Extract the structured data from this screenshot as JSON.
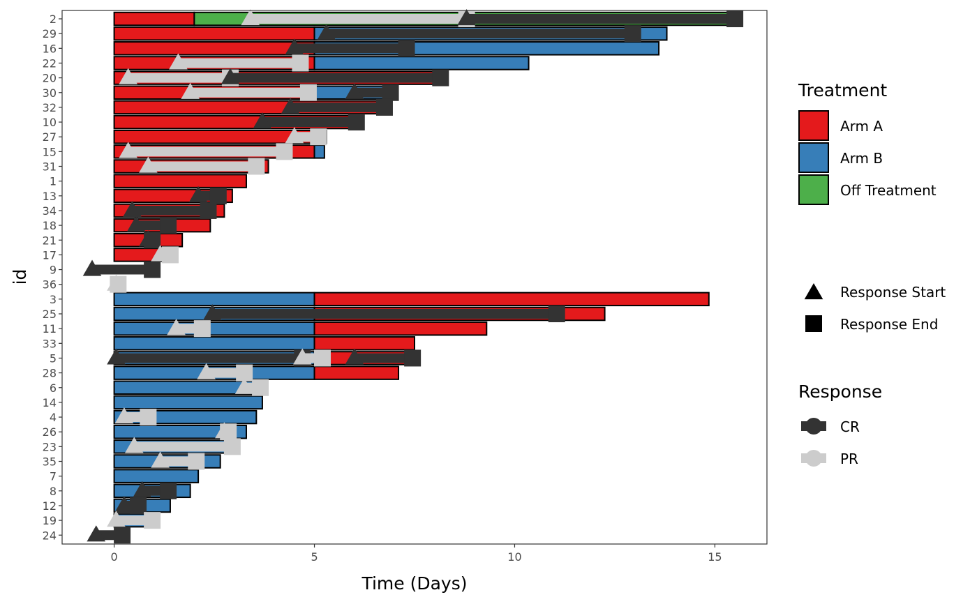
{
  "chart_data": {
    "type": "swimmer",
    "title": "",
    "xlabel": "Time (Days)",
    "ylabel": "id",
    "xlim": [
      -1.3,
      16.3
    ],
    "x_ticks": [
      0,
      5,
      10,
      15
    ],
    "grid": false,
    "ids": [
      "2",
      "29",
      "16",
      "22",
      "20",
      "30",
      "32",
      "10",
      "27",
      "15",
      "31",
      "1",
      "13",
      "34",
      "18",
      "21",
      "17",
      "9",
      "36",
      "3",
      "25",
      "11",
      "33",
      "5",
      "28",
      "6",
      "14",
      "4",
      "26",
      "23",
      "35",
      "7",
      "8",
      "12",
      "19",
      "24"
    ],
    "treatment_legend": {
      "title": "Treatment",
      "entries": [
        {
          "key": "A",
          "label": "Arm A",
          "color": "#E41A1C"
        },
        {
          "key": "B",
          "label": "Arm B",
          "color": "#377EB8"
        },
        {
          "key": "O",
          "label": "Off Treatment",
          "color": "#4DAF4A"
        }
      ]
    },
    "shape_legend": {
      "entries": [
        {
          "key": "start",
          "label": "Response Start",
          "shape": "triangle"
        },
        {
          "key": "end",
          "label": "Response End",
          "shape": "square"
        }
      ]
    },
    "response_legend": {
      "title": "Response",
      "entries": [
        {
          "key": "CR",
          "label": "CR",
          "color": "#333333"
        },
        {
          "key": "PR",
          "label": "PR",
          "color": "#CCCCCC"
        }
      ]
    },
    "bars": [
      {
        "id": "2",
        "segments": [
          {
            "t": "A",
            "from": 0,
            "to": 2
          },
          {
            "t": "O",
            "from": 2,
            "to": 15.5
          }
        ]
      },
      {
        "id": "29",
        "segments": [
          {
            "t": "A",
            "from": 0,
            "to": 5
          },
          {
            "t": "B",
            "from": 5,
            "to": 13.8
          }
        ]
      },
      {
        "id": "16",
        "segments": [
          {
            "t": "A",
            "from": 0,
            "to": 5
          },
          {
            "t": "B",
            "from": 5,
            "to": 13.6
          }
        ]
      },
      {
        "id": "22",
        "segments": [
          {
            "t": "A",
            "from": 0,
            "to": 5
          },
          {
            "t": "B",
            "from": 5,
            "to": 10.35
          }
        ]
      },
      {
        "id": "20",
        "segments": [
          {
            "t": "A",
            "from": 0,
            "to": 8.15
          }
        ]
      },
      {
        "id": "30",
        "segments": [
          {
            "t": "A",
            "from": 0,
            "to": 5
          },
          {
            "t": "B",
            "from": 5,
            "to": 6.9
          }
        ]
      },
      {
        "id": "32",
        "segments": [
          {
            "t": "A",
            "from": 0,
            "to": 6.85
          }
        ]
      },
      {
        "id": "10",
        "segments": [
          {
            "t": "A",
            "from": 0,
            "to": 6.05
          }
        ]
      },
      {
        "id": "27",
        "segments": [
          {
            "t": "A",
            "from": 0,
            "to": 5.3
          }
        ]
      },
      {
        "id": "15",
        "segments": [
          {
            "t": "A",
            "from": 0,
            "to": 5
          },
          {
            "t": "B",
            "from": 5,
            "to": 5.25
          }
        ]
      },
      {
        "id": "31",
        "segments": [
          {
            "t": "A",
            "from": 0,
            "to": 3.85
          }
        ]
      },
      {
        "id": "1",
        "segments": [
          {
            "t": "A",
            "from": 0,
            "to": 3.3
          }
        ]
      },
      {
        "id": "13",
        "segments": [
          {
            "t": "A",
            "from": 0,
            "to": 2.95
          }
        ]
      },
      {
        "id": "34",
        "segments": [
          {
            "t": "A",
            "from": 0,
            "to": 2.75
          }
        ]
      },
      {
        "id": "18",
        "segments": [
          {
            "t": "A",
            "from": 0,
            "to": 2.4
          }
        ]
      },
      {
        "id": "21",
        "segments": [
          {
            "t": "A",
            "from": 0,
            "to": 1.7
          }
        ]
      },
      {
        "id": "17",
        "segments": [
          {
            "t": "A",
            "from": 0,
            "to": 1.2
          }
        ]
      },
      {
        "id": "9",
        "segments": []
      },
      {
        "id": "36",
        "segments": []
      },
      {
        "id": "3",
        "segments": [
          {
            "t": "B",
            "from": 0,
            "to": 5
          },
          {
            "t": "A",
            "from": 5,
            "to": 14.85
          }
        ]
      },
      {
        "id": "25",
        "segments": [
          {
            "t": "B",
            "from": 0,
            "to": 5
          },
          {
            "t": "A",
            "from": 5,
            "to": 12.25
          }
        ]
      },
      {
        "id": "11",
        "segments": [
          {
            "t": "B",
            "from": 0,
            "to": 5
          },
          {
            "t": "A",
            "from": 5,
            "to": 9.3
          }
        ]
      },
      {
        "id": "33",
        "segments": [
          {
            "t": "B",
            "from": 0,
            "to": 5
          },
          {
            "t": "A",
            "from": 5,
            "to": 7.5
          }
        ]
      },
      {
        "id": "5",
        "segments": [
          {
            "t": "B",
            "from": 0,
            "to": 5
          },
          {
            "t": "A",
            "from": 5,
            "to": 7.45
          }
        ]
      },
      {
        "id": "28",
        "segments": [
          {
            "t": "B",
            "from": 0,
            "to": 5
          },
          {
            "t": "A",
            "from": 5,
            "to": 7.1
          }
        ]
      },
      {
        "id": "6",
        "segments": [
          {
            "t": "B",
            "from": 0,
            "to": 3.7
          }
        ]
      },
      {
        "id": "14",
        "segments": [
          {
            "t": "B",
            "from": 0,
            "to": 3.7
          }
        ]
      },
      {
        "id": "4",
        "segments": [
          {
            "t": "B",
            "from": 0,
            "to": 3.55
          }
        ]
      },
      {
        "id": "26",
        "segments": [
          {
            "t": "B",
            "from": 0,
            "to": 3.3
          }
        ]
      },
      {
        "id": "23",
        "segments": [
          {
            "t": "B",
            "from": 0,
            "to": 3.0
          }
        ]
      },
      {
        "id": "35",
        "segments": [
          {
            "t": "B",
            "from": 0,
            "to": 2.65
          }
        ]
      },
      {
        "id": "7",
        "segments": [
          {
            "t": "B",
            "from": 0,
            "to": 2.1
          }
        ]
      },
      {
        "id": "8",
        "segments": [
          {
            "t": "B",
            "from": 0,
            "to": 1.9
          }
        ]
      },
      {
        "id": "12",
        "segments": [
          {
            "t": "B",
            "from": 0,
            "to": 1.4
          }
        ]
      },
      {
        "id": "19",
        "segments": [
          {
            "t": "B",
            "from": 0,
            "to": 1.05
          }
        ]
      },
      {
        "id": "24",
        "segments": []
      }
    ],
    "responses": [
      {
        "id": "2",
        "type": "PR",
        "start": 3.4,
        "end": 8.8
      },
      {
        "id": "2",
        "type": "CR",
        "start": 8.8,
        "end": 15.5
      },
      {
        "id": "29",
        "type": "CR",
        "start": 5.3,
        "end": 12.95
      },
      {
        "id": "16",
        "type": "CR",
        "start": 4.5,
        "end": 7.3
      },
      {
        "id": "22",
        "type": "PR",
        "start": 1.6,
        "end": 4.65
      },
      {
        "id": "20",
        "type": "PR",
        "start": 0.35,
        "end": 2.9
      },
      {
        "id": "20",
        "type": "CR",
        "start": 2.9,
        "end": 8.15
      },
      {
        "id": "30",
        "type": "PR",
        "start": 1.9,
        "end": 4.85
      },
      {
        "id": "30",
        "type": "CR",
        "start": 6.0,
        "end": 6.9
      },
      {
        "id": "32",
        "type": "CR",
        "start": 4.4,
        "end": 6.75
      },
      {
        "id": "10",
        "type": "CR",
        "start": 3.7,
        "end": 6.05
      },
      {
        "id": "27",
        "type": "PR",
        "start": 4.5,
        "end": 5.1
      },
      {
        "id": "15",
        "type": "PR",
        "start": 0.35,
        "end": 4.25
      },
      {
        "id": "31",
        "type": "PR",
        "start": 0.85,
        "end": 3.55
      },
      {
        "id": "13",
        "type": "CR",
        "start": 2.1,
        "end": 2.6
      },
      {
        "id": "34",
        "type": "CR",
        "start": 0.45,
        "end": 2.35
      },
      {
        "id": "18",
        "type": "CR",
        "start": 0.55,
        "end": 1.35
      },
      {
        "id": "21",
        "type": "CR",
        "start": 0.85,
        "end": 0.95
      },
      {
        "id": "17",
        "type": "PR",
        "start": 1.15,
        "end": 1.4
      },
      {
        "id": "9",
        "type": "CR",
        "start": -0.55,
        "end": 0.95
      },
      {
        "id": "36",
        "type": "PR",
        "start": 0.05,
        "end": 0.1
      },
      {
        "id": "25",
        "type": "CR",
        "start": 2.45,
        "end": 11.05
      },
      {
        "id": "11",
        "type": "PR",
        "start": 1.55,
        "end": 2.2
      },
      {
        "id": "5",
        "type": "CR",
        "start": 0.05,
        "end": 4.7
      },
      {
        "id": "5",
        "type": "PR",
        "start": 4.7,
        "end": 5.2
      },
      {
        "id": "5",
        "type": "CR",
        "start": 6.0,
        "end": 7.45
      },
      {
        "id": "28",
        "type": "PR",
        "start": 2.3,
        "end": 3.25
      },
      {
        "id": "6",
        "type": "PR",
        "start": 3.25,
        "end": 3.65
      },
      {
        "id": "4",
        "type": "PR",
        "start": 0.25,
        "end": 0.85
      },
      {
        "id": "26",
        "type": "PR",
        "start": 2.75,
        "end": 2.85
      },
      {
        "id": "23",
        "type": "PR",
        "start": 0.5,
        "end": 2.95
      },
      {
        "id": "35",
        "type": "PR",
        "start": 1.15,
        "end": 2.05
      },
      {
        "id": "8",
        "type": "CR",
        "start": 0.7,
        "end": 1.35
      },
      {
        "id": "12",
        "type": "CR",
        "start": 0.25,
        "end": 0.6
      },
      {
        "id": "19",
        "type": "PR",
        "start": 0.05,
        "end": 0.95
      },
      {
        "id": "24",
        "type": "CR",
        "start": -0.45,
        "end": 0.2
      }
    ]
  }
}
